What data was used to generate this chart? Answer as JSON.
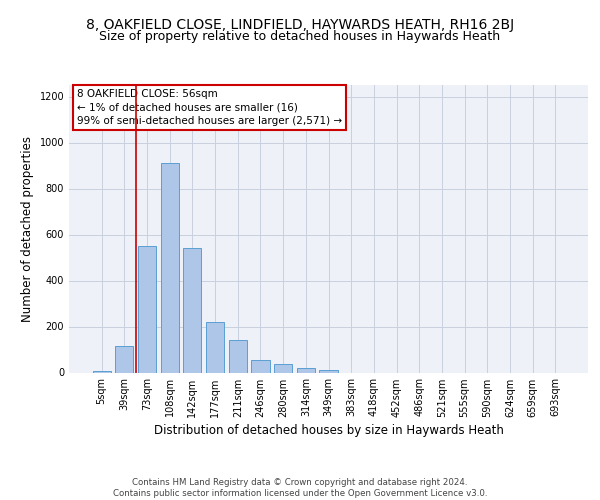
{
  "title1": "8, OAKFIELD CLOSE, LINDFIELD, HAYWARDS HEATH, RH16 2BJ",
  "title2": "Size of property relative to detached houses in Haywards Heath",
  "xlabel": "Distribution of detached houses by size in Haywards Heath",
  "ylabel": "Number of detached properties",
  "categories": [
    "5sqm",
    "39sqm",
    "73sqm",
    "108sqm",
    "142sqm",
    "177sqm",
    "211sqm",
    "246sqm",
    "280sqm",
    "314sqm",
    "349sqm",
    "383sqm",
    "418sqm",
    "452sqm",
    "486sqm",
    "521sqm",
    "555sqm",
    "590sqm",
    "624sqm",
    "659sqm",
    "693sqm"
  ],
  "values": [
    5,
    115,
    550,
    910,
    540,
    220,
    140,
    55,
    35,
    20,
    10,
    0,
    0,
    0,
    0,
    0,
    0,
    0,
    0,
    0,
    0
  ],
  "bar_color": "#aec6e8",
  "bar_edge_color": "#5a9fd4",
  "bar_width": 0.8,
  "ylim": [
    0,
    1250
  ],
  "yticks": [
    0,
    200,
    400,
    600,
    800,
    1000,
    1200
  ],
  "annotation_box_text": "8 OAKFIELD CLOSE: 56sqm\n← 1% of detached houses are smaller (16)\n99% of semi-detached houses are larger (2,571) →",
  "vline_color": "#cc0000",
  "title1_fontsize": 10,
  "title2_fontsize": 9,
  "xlabel_fontsize": 8.5,
  "ylabel_fontsize": 8.5,
  "tick_fontsize": 7,
  "annotation_fontsize": 7.5,
  "footer_text": "Contains HM Land Registry data © Crown copyright and database right 2024.\nContains public sector information licensed under the Open Government Licence v3.0.",
  "bg_color": "#eef2f8",
  "grid_color": "#c8d0de"
}
